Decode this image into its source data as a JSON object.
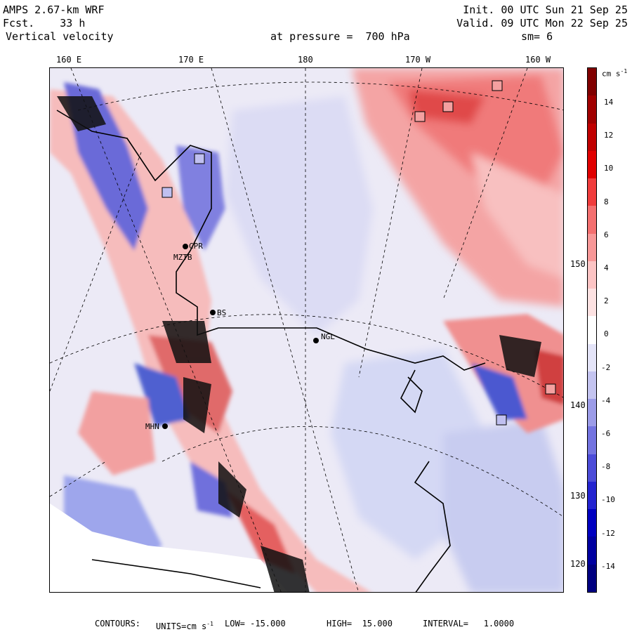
{
  "header": {
    "model": "AMPS 2.67-km WRF",
    "forecast": "Fcst.    33 h",
    "field": "Vertical velocity",
    "init": "Init. 00 UTC Sun 21 Sep 25",
    "valid": "Valid. 09 UTC Mon 22 Sep 25",
    "pressure_label": "at pressure =  700 hPa",
    "smoothing": "sm= 6"
  },
  "top_lon_labels": [
    "160 E",
    "170 E",
    "180",
    "170 W",
    "160 W"
  ],
  "right_lat_labels": [
    "150 W",
    "140 W",
    "130 W",
    "120 W"
  ],
  "stations": [
    {
      "id": "CPR",
      "label": "CPR"
    },
    {
      "id": "MZTB",
      "label": "MZTB"
    },
    {
      "id": "BS",
      "label": "BS"
    },
    {
      "id": "NGL",
      "label": "NGL"
    },
    {
      "id": "MHN",
      "label": "MHN"
    }
  ],
  "colorbar": {
    "units": "cm s",
    "units_exp": "-1",
    "tick_labels": [
      "14",
      "12",
      "10",
      "8",
      "6",
      "4",
      "2",
      "0",
      "-2",
      "-4",
      "-6",
      "-8",
      "-10",
      "-12",
      "-14"
    ],
    "colors": [
      "#800000",
      "#a00000",
      "#c00000",
      "#e00000",
      "#f03c3c",
      "#f47070",
      "#f89898",
      "#fcc4c4",
      "#fde2e2",
      "#ffffff",
      "#e4e4f8",
      "#c4c4f0",
      "#9c9ce8",
      "#7474e0",
      "#4c4cd8",
      "#2424d0",
      "#0000c0",
      "#0000a0",
      "#000080"
    ]
  },
  "footer": {
    "contours_label": "CONTOURS:",
    "units_label": "UNITS=cm s",
    "units_exp": "-1",
    "low_label": "LOW= -15.000",
    "high_label": "HIGH=  15.000",
    "interval_label": "INTERVAL=   1.0000"
  },
  "colors": {
    "up": "#e05050",
    "down": "#4060d0",
    "neutral": "#f4f4fb",
    "coast": "#000000"
  }
}
